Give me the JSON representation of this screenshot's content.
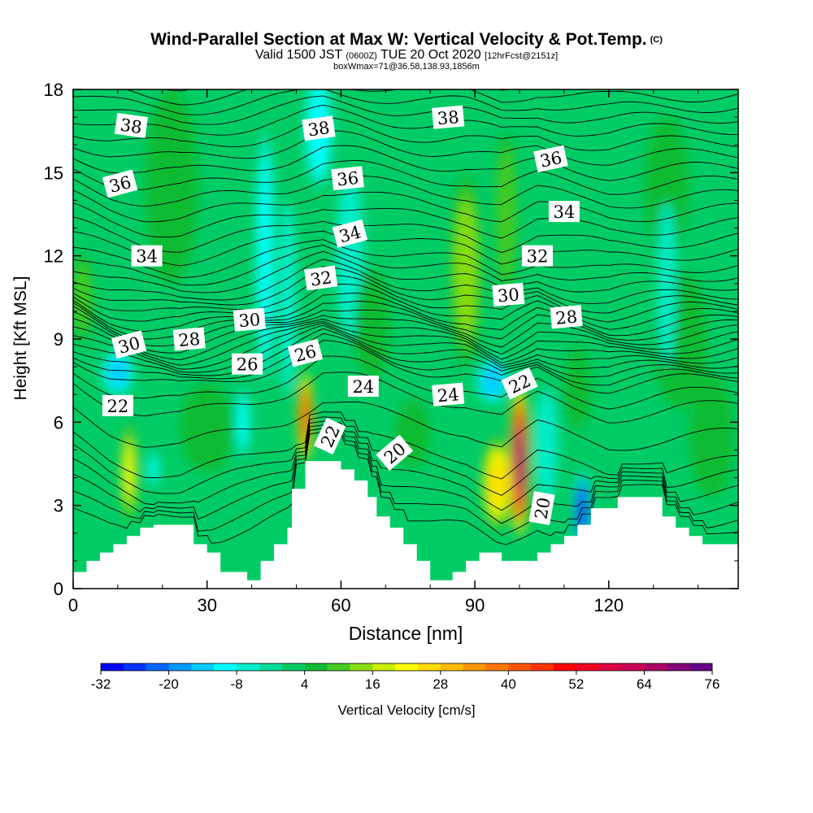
{
  "title": {
    "main": "Wind-Parallel Section at Max W: Vertical Velocity & Pot.Temp.",
    "copyright": "(C)",
    "valid_prefix": "Valid 1500 JST",
    "valid_utc": "(0600Z)",
    "valid_date": "TUE 20 Oct 2020",
    "forecast": "[12hrFcst@2151z]",
    "boxwmax": "boxWmax=71@36.58,138.93,1856m"
  },
  "chart_data": {
    "type": "heatmap",
    "title": "Wind-Parallel Section at Max W: Vertical Velocity & Pot.Temp.",
    "xlabel": "Distance [nm]",
    "ylabel": "Height [Kft MSL]",
    "xlim": [
      0,
      149
    ],
    "ylim": [
      0,
      18
    ],
    "x_ticks": [
      0,
      30,
      60,
      90,
      120
    ],
    "y_ticks": [
      0,
      3,
      6,
      9,
      12,
      15,
      18
    ],
    "colorbar": {
      "label": "Vertical Velocity [cm/s]",
      "tick_labels": [
        "-32",
        "-20",
        "-8",
        "4",
        "16",
        "28",
        "40",
        "52",
        "64",
        "76"
      ],
      "tick_values": [
        -32,
        -20,
        -8,
        4,
        16,
        28,
        40,
        52,
        64,
        76
      ],
      "bins": [
        {
          "from": -32,
          "to": -28,
          "color": "#0000ff"
        },
        {
          "from": -28,
          "to": -24,
          "color": "#0033ff"
        },
        {
          "from": -24,
          "to": -20,
          "color": "#0066ff"
        },
        {
          "from": -20,
          "to": -16,
          "color": "#0099ff"
        },
        {
          "from": -16,
          "to": -12,
          "color": "#00ccff"
        },
        {
          "from": -12,
          "to": -8,
          "color": "#00ffff"
        },
        {
          "from": -8,
          "to": -4,
          "color": "#00eecc"
        },
        {
          "from": -4,
          "to": 0,
          "color": "#00dd99"
        },
        {
          "from": 0,
          "to": 4,
          "color": "#00cc66"
        },
        {
          "from": 4,
          "to": 8,
          "color": "#11bb33"
        },
        {
          "from": 8,
          "to": 12,
          "color": "#44cc22"
        },
        {
          "from": 12,
          "to": 16,
          "color": "#88dd11"
        },
        {
          "from": 16,
          "to": 20,
          "color": "#ccee00"
        },
        {
          "from": 20,
          "to": 24,
          "color": "#ffff00"
        },
        {
          "from": 24,
          "to": 28,
          "color": "#ffdd00"
        },
        {
          "from": 28,
          "to": 32,
          "color": "#ffbb00"
        },
        {
          "from": 32,
          "to": 36,
          "color": "#ff9900"
        },
        {
          "from": 36,
          "to": 40,
          "color": "#ff7700"
        },
        {
          "from": 40,
          "to": 44,
          "color": "#ff5500"
        },
        {
          "from": 44,
          "to": 48,
          "color": "#ff3300"
        },
        {
          "from": 48,
          "to": 52,
          "color": "#ff0000"
        },
        {
          "from": 52,
          "to": 56,
          "color": "#ee0022"
        },
        {
          "from": 56,
          "to": 60,
          "color": "#dd0044"
        },
        {
          "from": 60,
          "to": 64,
          "color": "#cc0055"
        },
        {
          "from": 64,
          "to": 68,
          "color": "#aa0066"
        },
        {
          "from": 68,
          "to": 72,
          "color": "#880077"
        },
        {
          "from": 72,
          "to": 76,
          "color": "#660088"
        }
      ]
    },
    "background_color": "#00cc66",
    "w_features": [
      {
        "x": 100,
        "y": 4.6,
        "rx": 2.2,
        "ry": 2.8,
        "w": 70
      },
      {
        "x": 52,
        "y": 6.2,
        "rx": 1.7,
        "ry": 1.7,
        "w": 46
      },
      {
        "x": 95,
        "y": 3.8,
        "rx": 3.5,
        "ry": 1.7,
        "w": 25
      },
      {
        "x": 12.5,
        "y": 4.2,
        "rx": 1.8,
        "ry": 1.8,
        "w": 20
      },
      {
        "x": 88,
        "y": 11.5,
        "rx": 3.5,
        "ry": 3.5,
        "w": 14
      },
      {
        "x": 97,
        "y": 13.5,
        "rx": 2.5,
        "ry": 3.0,
        "w": 10
      },
      {
        "x": 2,
        "y": 10.5,
        "rx": 2.5,
        "ry": 1.6,
        "w": 8
      },
      {
        "x": 67,
        "y": 9.5,
        "rx": 4.0,
        "ry": 2.0,
        "w": 6
      },
      {
        "x": 136,
        "y": 9.0,
        "rx": 6.0,
        "ry": 2.5,
        "w": 6
      },
      {
        "x": 113,
        "y": 7.2,
        "rx": 3.0,
        "ry": 1.5,
        "w": 5
      },
      {
        "x": 133,
        "y": 14.5,
        "rx": 5.0,
        "ry": 2.5,
        "w": 5
      },
      {
        "x": 30,
        "y": 5.8,
        "rx": 6.0,
        "ry": 1.6,
        "w": 4
      },
      {
        "x": 76,
        "y": 5.6,
        "rx": 4.0,
        "ry": 1.2,
        "w": 4
      },
      {
        "x": 22,
        "y": 14.5,
        "rx": 6.0,
        "ry": 3.5,
        "w": 4
      },
      {
        "x": 143,
        "y": 5.5,
        "rx": 5.0,
        "ry": 2.2,
        "w": 5
      },
      {
        "x": 114,
        "y": 2.8,
        "rx": 1.7,
        "ry": 1.4,
        "w": -28
      },
      {
        "x": 94,
        "y": 7.5,
        "rx": 3.5,
        "ry": 0.8,
        "w": -15
      },
      {
        "x": 10,
        "y": 7.8,
        "rx": 3.5,
        "ry": 0.8,
        "w": -12
      },
      {
        "x": 43,
        "y": 12.0,
        "rx": 2.0,
        "ry": 4.5,
        "w": -10
      },
      {
        "x": 55,
        "y": 16.5,
        "rx": 3.0,
        "ry": 2.0,
        "w": -9
      },
      {
        "x": 38,
        "y": 6.0,
        "rx": 1.5,
        "ry": 1.2,
        "w": -8
      },
      {
        "x": 18,
        "y": 4.3,
        "rx": 1.2,
        "ry": 0.6,
        "w": -10
      },
      {
        "x": 106,
        "y": 5.2,
        "rx": 2.5,
        "ry": 2.0,
        "w": -6
      },
      {
        "x": 133,
        "y": 11.0,
        "rx": 2.0,
        "ry": 3.0,
        "w": -6
      },
      {
        "x": 62,
        "y": 12.0,
        "rx": 3.0,
        "ry": 3.0,
        "w": -5
      },
      {
        "x": 48,
        "y": 10.5,
        "rx": 2.0,
        "ry": 3.5,
        "w": -4
      }
    ],
    "terrain": [
      [
        0,
        0.6
      ],
      [
        3,
        0.6
      ],
      [
        3,
        1.0
      ],
      [
        6,
        1.0
      ],
      [
        6,
        1.3
      ],
      [
        9,
        1.3
      ],
      [
        9,
        1.6
      ],
      [
        12,
        1.6
      ],
      [
        12,
        1.9
      ],
      [
        15,
        1.9
      ],
      [
        15,
        2.2
      ],
      [
        18,
        2.2
      ],
      [
        18,
        2.3
      ],
      [
        24,
        2.3
      ],
      [
        27,
        2.3
      ],
      [
        27,
        1.6
      ],
      [
        30,
        1.6
      ],
      [
        30,
        1.3
      ],
      [
        33,
        1.3
      ],
      [
        33,
        0.6
      ],
      [
        39,
        0.6
      ],
      [
        39,
        0.3
      ],
      [
        42,
        0.3
      ],
      [
        42,
        1.0
      ],
      [
        45,
        1.0
      ],
      [
        45,
        1.6
      ],
      [
        48,
        1.6
      ],
      [
        48,
        2.2
      ],
      [
        49,
        2.2
      ],
      [
        49,
        3.6
      ],
      [
        52,
        3.6
      ],
      [
        52,
        4.6
      ],
      [
        60,
        4.6
      ],
      [
        60,
        4.3
      ],
      [
        63,
        4.3
      ],
      [
        63,
        3.9
      ],
      [
        66,
        3.9
      ],
      [
        66,
        3.3
      ],
      [
        68,
        3.3
      ],
      [
        68,
        2.6
      ],
      [
        71,
        2.6
      ],
      [
        71,
        2.2
      ],
      [
        74,
        2.2
      ],
      [
        74,
        1.6
      ],
      [
        77,
        1.6
      ],
      [
        77,
        1.0
      ],
      [
        80,
        1.0
      ],
      [
        80,
        0.3
      ],
      [
        85,
        0.3
      ],
      [
        85,
        0.6
      ],
      [
        88,
        0.6
      ],
      [
        88,
        1.0
      ],
      [
        91,
        1.0
      ],
      [
        91,
        1.3
      ],
      [
        96,
        1.3
      ],
      [
        96,
        1.0
      ],
      [
        100,
        1.0
      ],
      [
        100,
        1.0
      ],
      [
        104,
        1.0
      ],
      [
        104,
        1.3
      ],
      [
        107,
        1.3
      ],
      [
        107,
        1.6
      ],
      [
        110,
        1.6
      ],
      [
        110,
        1.9
      ],
      [
        113,
        1.9
      ],
      [
        113,
        2.3
      ],
      [
        116,
        2.3
      ],
      [
        116,
        2.9
      ],
      [
        119,
        2.9
      ],
      [
        119,
        2.9
      ],
      [
        122,
        2.9
      ],
      [
        122,
        3.3
      ],
      [
        132,
        3.3
      ],
      [
        132,
        2.6
      ],
      [
        135,
        2.6
      ],
      [
        135,
        2.2
      ],
      [
        138,
        2.2
      ],
      [
        138,
        1.9
      ],
      [
        141,
        1.9
      ],
      [
        141,
        1.6
      ],
      [
        143,
        1.6
      ],
      [
        143,
        1.6
      ],
      [
        149,
        1.6
      ]
    ],
    "theta_profiles": {
      "x": [
        0,
        8,
        16,
        24,
        32,
        40,
        48,
        56,
        64,
        72,
        80,
        88,
        96,
        104,
        112,
        120,
        128,
        136,
        149
      ],
      "z_ref": [
        3,
        5,
        7,
        8,
        9,
        10,
        11,
        12,
        13,
        14,
        15,
        16,
        17,
        18
      ],
      "theta_ref": [
        19,
        21,
        22,
        23,
        25.5,
        28,
        30,
        31.5,
        32.6,
        33.6,
        34.6,
        35.6,
        36.7,
        38
      ],
      "dz_shift": [
        0.3,
        -0.2,
        -0.5,
        -0.6,
        -0.4,
        -0.2,
        0.1,
        0.6,
        0.4,
        0.1,
        -0.1,
        -0.2,
        -0.6,
        -0.1,
        -0.4,
        -0.6,
        -0.5,
        -0.4,
        -0.3
      ],
      "levels": [
        18.5,
        19,
        19.5,
        20,
        20.5,
        21,
        21.5,
        22,
        22.5,
        23,
        23.5,
        24,
        24.5,
        25,
        25.5,
        26,
        26.5,
        27,
        27.5,
        28,
        28.5,
        29,
        29.5,
        30,
        30.5,
        31,
        31.5,
        32,
        32.5,
        33,
        33.5,
        34,
        34.5,
        35,
        35.5,
        36,
        36.5,
        37,
        37.5,
        38,
        38.5
      ]
    },
    "contour_labels": [
      {
        "text": "38",
        "x": 13,
        "y": 16.7,
        "angle": 8
      },
      {
        "text": "38",
        "x": 55,
        "y": 16.6,
        "angle": -8
      },
      {
        "text": "38",
        "x": 84,
        "y": 17.0,
        "angle": -5
      },
      {
        "text": "36",
        "x": 10.5,
        "y": 14.6,
        "angle": -15
      },
      {
        "text": "36",
        "x": 61.5,
        "y": 14.8,
        "angle": -6
      },
      {
        "text": "36",
        "x": 107,
        "y": 15.5,
        "angle": -12
      },
      {
        "text": "34",
        "x": 16.5,
        "y": 12.0,
        "angle": 0
      },
      {
        "text": "34",
        "x": 62,
        "y": 12.8,
        "angle": -15
      },
      {
        "text": "34",
        "x": 110,
        "y": 13.6,
        "angle": 0
      },
      {
        "text": "32",
        "x": 55.5,
        "y": 11.2,
        "angle": -8
      },
      {
        "text": "32",
        "x": 104,
        "y": 12.0,
        "angle": 0
      },
      {
        "text": "30",
        "x": 12.5,
        "y": 8.8,
        "angle": -15
      },
      {
        "text": "30",
        "x": 39.5,
        "y": 9.7,
        "angle": -5
      },
      {
        "text": "30",
        "x": 97.5,
        "y": 10.6,
        "angle": -5
      },
      {
        "text": "28",
        "x": 26,
        "y": 9.0,
        "angle": -5
      },
      {
        "text": "28",
        "x": 110.5,
        "y": 9.8,
        "angle": -5
      },
      {
        "text": "26",
        "x": 39,
        "y": 8.1,
        "angle": 0
      },
      {
        "text": "26",
        "x": 52,
        "y": 8.5,
        "angle": -15
      },
      {
        "text": "24",
        "x": 65,
        "y": 7.3,
        "angle": 0
      },
      {
        "text": "24",
        "x": 84,
        "y": 7.0,
        "angle": -5
      },
      {
        "text": "22",
        "x": 10,
        "y": 6.6,
        "angle": 0
      },
      {
        "text": "22",
        "x": 100,
        "y": 7.4,
        "angle": -25
      },
      {
        "text": "22",
        "x": 57.5,
        "y": 5.5,
        "angle": -65
      },
      {
        "text": "20",
        "x": 72,
        "y": 4.9,
        "angle": -40
      },
      {
        "text": "20",
        "x": 105,
        "y": 2.9,
        "angle": -80
      }
    ]
  }
}
